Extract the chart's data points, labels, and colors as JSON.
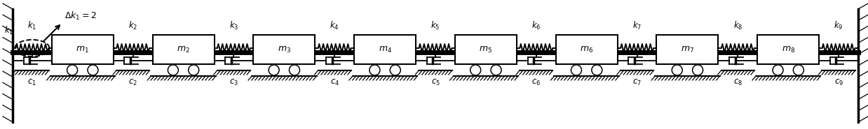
{
  "n_masses": 8,
  "n_springs": 9,
  "mass_labels": [
    "m_1",
    "m_2",
    "m_3",
    "m_4",
    "m_5",
    "m_6",
    "m_7",
    "m_8"
  ],
  "spring_labels": [
    "k_1",
    "k_2",
    "k_3",
    "k_4",
    "k_5",
    "k_6",
    "k_7",
    "k_8",
    "k_9"
  ],
  "damper_labels": [
    "c_1",
    "c_2",
    "c_3",
    "c_4",
    "c_5",
    "c_6",
    "c_7",
    "c_8",
    "c_9"
  ],
  "delta_label": "\\Delta k_1 = 2",
  "bg_color": "#ffffff",
  "line_color": "#000000",
  "fig_width": 12.38,
  "fig_height": 1.85,
  "dpi": 100
}
